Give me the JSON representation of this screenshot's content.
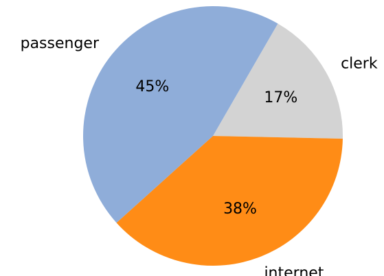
{
  "chart_data": {
    "type": "pie",
    "title": "",
    "slices": [
      {
        "label": "clerk",
        "value": 17,
        "display": "17%",
        "color": "#d3d3d3"
      },
      {
        "label": "internet",
        "value": 38,
        "display": "38%",
        "color": "#ff8c16"
      },
      {
        "label": "passenger",
        "value": 45,
        "display": "45%",
        "color": "#8fadd9"
      }
    ],
    "start_angle_deg": 60,
    "direction": "clockwise",
    "legend": "none"
  }
}
